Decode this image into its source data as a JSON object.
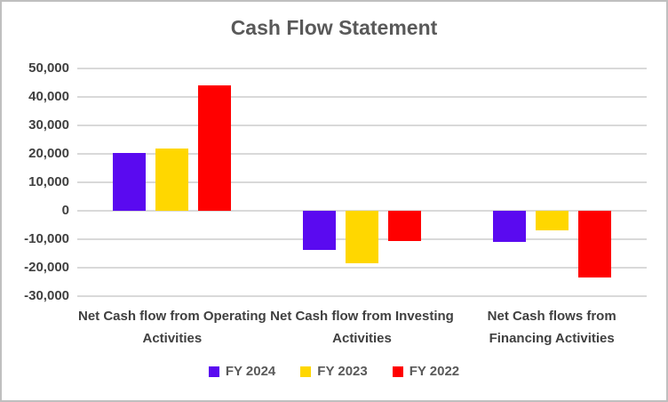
{
  "title": "Cash Flow Statement",
  "chart_data": {
    "type": "bar",
    "title": "Cash Flow Statement",
    "categories": [
      "Net Cash flow from Operating Activities",
      "Net Cash flow from Investing Activities",
      "Net Cash flows from Financing Activities"
    ],
    "series": [
      {
        "name": "FY 2024",
        "color": "#5a0af0",
        "values": [
          20200,
          -13900,
          -11000
        ]
      },
      {
        "name": "FY 2023",
        "color": "#ffd700",
        "values": [
          22000,
          -18400,
          -7000
        ]
      },
      {
        "name": "FY 2022",
        "color": "#ff0000",
        "values": [
          44200,
          -10500,
          -23300
        ]
      }
    ],
    "ylim": [
      -30000,
      50000
    ],
    "ytick_step": 10000,
    "yticks": [
      "50,000",
      "40,000",
      "30,000",
      "20,000",
      "10,000",
      "0",
      "-10,000",
      "-20,000",
      "-30,000"
    ],
    "grid": true,
    "legend_position": "bottom"
  },
  "colors": {
    "gridline": "#d9d9d9",
    "frame_border": "#bfbfbf",
    "title_text": "#595959",
    "axis_text": "#404040",
    "legend_text": "#595959"
  }
}
